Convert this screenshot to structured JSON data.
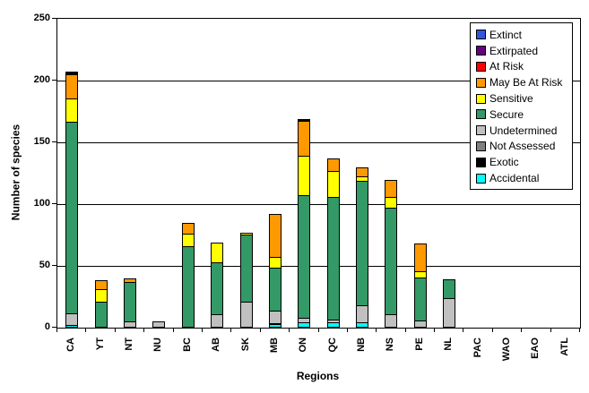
{
  "chart_data": {
    "type": "bar",
    "stacked": true,
    "title": "",
    "xlabel": "Regions",
    "ylabel": "Number of species",
    "ylim": [
      0,
      250
    ],
    "yticks": [
      0,
      50,
      100,
      150,
      200,
      250
    ],
    "grid": true,
    "legend_position": "inside-top-right",
    "categories": [
      "CA",
      "YT",
      "NT",
      "NU",
      "BC",
      "AB",
      "SK",
      "MB",
      "ON",
      "QC",
      "NB",
      "NS",
      "PE",
      "NL",
      "PAC",
      "WAO",
      "EAO",
      "ATL"
    ],
    "legend": [
      {
        "label": "Extinct",
        "color": "#3355DD"
      },
      {
        "label": "Extirpated",
        "color": "#660080"
      },
      {
        "label": "At Risk",
        "color": "#FF0000"
      },
      {
        "label": "May Be At Risk",
        "color": "#FF9900"
      },
      {
        "label": "Sensitive",
        "color": "#FFFF00"
      },
      {
        "label": "Secure",
        "color": "#339966"
      },
      {
        "label": "Undetermined",
        "color": "#C0C0C0"
      },
      {
        "label": "Not Assessed",
        "color": "#808080"
      },
      {
        "label": "Exotic",
        "color": "#000000"
      },
      {
        "label": "Accidental",
        "color": "#00FFFF"
      }
    ],
    "series": [
      {
        "name": "Extinct",
        "values": [
          1,
          0,
          0,
          0,
          0,
          0,
          0,
          0,
          0,
          0,
          0,
          0,
          0,
          0,
          0,
          0,
          0,
          0
        ]
      },
      {
        "name": "Extirpated",
        "values": [
          1,
          0,
          0,
          0,
          0,
          0,
          0,
          0,
          1,
          0,
          0,
          0,
          0,
          0,
          0,
          0,
          0,
          0
        ]
      },
      {
        "name": "At Risk",
        "values": [
          1,
          0,
          0,
          0,
          0,
          0,
          0,
          0,
          1,
          0,
          0,
          0,
          0,
          0,
          0,
          0,
          0,
          0
        ]
      },
      {
        "name": "May Be At Risk",
        "values": [
          20,
          8,
          3,
          0,
          9,
          0,
          0,
          35,
          29,
          11,
          8,
          15,
          23,
          0,
          0,
          0,
          0,
          0
        ]
      },
      {
        "name": "Sensitive",
        "values": [
          20,
          11,
          0,
          0,
          11,
          16,
          2,
          10,
          32,
          22,
          5,
          9,
          6,
          0,
          0,
          0,
          0,
          0
        ]
      },
      {
        "name": "Secure",
        "values": [
          156,
          21,
          33,
          0,
          66,
          43,
          55,
          35,
          100,
          100,
          101,
          87,
          35,
          16,
          0,
          0,
          0,
          0
        ]
      },
      {
        "name": "Undetermined",
        "values": [
          10,
          0,
          5,
          5,
          0,
          11,
          21,
          11,
          5,
          3,
          15,
          11,
          6,
          24,
          0,
          0,
          0,
          0
        ]
      },
      {
        "name": "Not Assessed",
        "values": [
          0,
          0,
          0,
          0,
          0,
          0,
          0,
          0,
          0,
          0,
          0,
          0,
          0,
          0,
          0,
          0,
          0,
          0
        ]
      },
      {
        "name": "Exotic",
        "values": [
          0,
          0,
          0,
          0,
          0,
          0,
          0,
          1,
          0,
          0,
          0,
          0,
          0,
          0,
          0,
          0,
          0,
          0
        ]
      },
      {
        "name": "Accidental",
        "values": [
          2,
          0,
          0,
          0,
          0,
          0,
          0,
          3,
          4,
          4,
          4,
          0,
          0,
          0,
          0,
          0,
          0,
          0
        ]
      }
    ]
  }
}
